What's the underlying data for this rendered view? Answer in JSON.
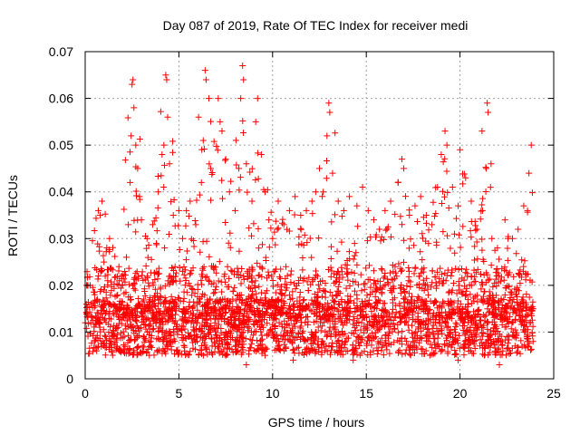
{
  "chart_data": {
    "type": "scatter",
    "title": "Day 087 of 2019, Rate Of TEC Index for receiver medi",
    "xlabel": "GPS time / hours",
    "ylabel": "ROTI / TECUs",
    "xlim": [
      0,
      25
    ],
    "ylim": [
      0,
      0.07
    ],
    "xticks": [
      0,
      5,
      10,
      15,
      20,
      25
    ],
    "xtick_labels": [
      "0",
      "5",
      "10",
      "15",
      "20",
      "25"
    ],
    "yticks": [
      0,
      0.01,
      0.02,
      0.03,
      0.04,
      0.05,
      0.06,
      0.07
    ],
    "ytick_labels": [
      "0",
      "0.01",
      "0.02",
      "0.03",
      "0.04",
      "0.05",
      "0.06",
      "0.07"
    ],
    "grid": true,
    "marker": "+",
    "marker_color": "#ff0000",
    "series": [
      {
        "name": "ROTI",
        "points": [
          [
            0.1,
            0.014
          ],
          [
            0.3,
            0.012
          ],
          [
            0.5,
            0.018
          ],
          [
            0.7,
            0.022
          ],
          [
            0.7,
            0.036
          ],
          [
            0.8,
            0.035
          ],
          [
            0.9,
            0.038
          ],
          [
            1.0,
            0.025
          ],
          [
            1.2,
            0.021
          ],
          [
            1.3,
            0.03
          ],
          [
            1.5,
            0.016
          ],
          [
            1.8,
            0.024
          ],
          [
            2.0,
            0.02
          ],
          [
            2.2,
            0.026
          ],
          [
            2.3,
            0.033
          ],
          [
            2.4,
            0.042
          ],
          [
            2.45,
            0.052
          ],
          [
            2.5,
            0.063
          ],
          [
            2.55,
            0.064
          ],
          [
            2.6,
            0.058
          ],
          [
            2.7,
            0.05
          ],
          [
            2.8,
            0.045
          ],
          [
            2.9,
            0.039
          ],
          [
            3.0,
            0.034
          ],
          [
            3.3,
            0.03
          ],
          [
            3.6,
            0.033
          ],
          [
            3.9,
            0.04
          ],
          [
            4.1,
            0.048
          ],
          [
            4.2,
            0.05
          ],
          [
            4.3,
            0.065
          ],
          [
            4.35,
            0.064
          ],
          [
            4.4,
            0.056
          ],
          [
            4.5,
            0.046
          ],
          [
            4.7,
            0.035
          ],
          [
            5.0,
            0.036
          ],
          [
            5.2,
            0.03
          ],
          [
            5.4,
            0.036
          ],
          [
            5.6,
            0.038
          ],
          [
            5.9,
            0.033
          ],
          [
            6.2,
            0.042
          ],
          [
            6.3,
            0.051
          ],
          [
            6.4,
            0.066
          ],
          [
            6.45,
            0.064
          ],
          [
            6.6,
            0.06
          ],
          [
            6.7,
            0.045
          ],
          [
            7.1,
            0.06
          ],
          [
            7.2,
            0.055
          ],
          [
            7.3,
            0.053
          ],
          [
            7.5,
            0.047
          ],
          [
            7.7,
            0.04
          ],
          [
            8.0,
            0.036
          ],
          [
            8.2,
            0.045
          ],
          [
            8.3,
            0.06
          ],
          [
            8.4,
            0.067
          ],
          [
            8.45,
            0.064
          ],
          [
            8.6,
            0.046
          ],
          [
            8.9,
            0.038
          ],
          [
            9.1,
            0.055
          ],
          [
            9.2,
            0.06
          ],
          [
            9.4,
            0.048
          ],
          [
            9.6,
            0.04
          ],
          [
            9.8,
            0.034
          ],
          [
            10.0,
            0.03
          ],
          [
            10.3,
            0.038
          ],
          [
            10.6,
            0.033
          ],
          [
            10.9,
            0.036
          ],
          [
            11.2,
            0.039
          ],
          [
            11.5,
            0.035
          ],
          [
            11.8,
            0.036
          ],
          [
            12.1,
            0.038
          ],
          [
            12.3,
            0.04
          ],
          [
            12.5,
            0.045
          ],
          [
            12.7,
            0.04
          ],
          [
            12.9,
            0.052
          ],
          [
            13.0,
            0.059
          ],
          [
            13.05,
            0.057
          ],
          [
            13.2,
            0.044
          ],
          [
            13.5,
            0.038
          ],
          [
            13.8,
            0.036
          ],
          [
            14.1,
            0.039
          ],
          [
            14.5,
            0.037
          ],
          [
            14.8,
            0.041
          ],
          [
            15.1,
            0.036
          ],
          [
            15.4,
            0.034
          ],
          [
            15.7,
            0.032
          ],
          [
            16.0,
            0.036
          ],
          [
            16.3,
            0.038
          ],
          [
            16.7,
            0.042
          ],
          [
            16.9,
            0.047
          ],
          [
            17.0,
            0.045
          ],
          [
            17.3,
            0.035
          ],
          [
            17.6,
            0.037
          ],
          [
            17.9,
            0.039
          ],
          [
            18.2,
            0.035
          ],
          [
            18.5,
            0.033
          ],
          [
            18.8,
            0.041
          ],
          [
            19.0,
            0.048
          ],
          [
            19.2,
            0.053
          ],
          [
            19.3,
            0.05
          ],
          [
            19.6,
            0.041
          ],
          [
            19.9,
            0.037
          ],
          [
            20.0,
            0.049
          ],
          [
            20.3,
            0.043
          ],
          [
            20.6,
            0.038
          ],
          [
            20.9,
            0.032
          ],
          [
            21.2,
            0.036
          ],
          [
            21.4,
            0.045
          ],
          [
            21.45,
            0.059
          ],
          [
            21.5,
            0.057
          ],
          [
            21.7,
            0.03
          ],
          [
            22.0,
            0.028
          ],
          [
            22.4,
            0.034
          ],
          [
            22.8,
            0.03
          ],
          [
            23.1,
            0.032
          ],
          [
            23.4,
            0.037
          ],
          [
            23.6,
            0.036
          ],
          [
            23.8,
            0.05
          ],
          [
            23.9,
            0.015
          ],
          [
            23.9,
            0.008
          ],
          [
            23.7,
            0.012
          ],
          [
            0.5,
            0.008
          ],
          [
            1.5,
            0.009
          ],
          [
            3.5,
            0.008
          ],
          [
            5.5,
            0.009
          ],
          [
            7.5,
            0.01
          ],
          [
            9.5,
            0.011
          ],
          [
            11.5,
            0.009
          ],
          [
            13.5,
            0.01
          ],
          [
            15.5,
            0.009
          ],
          [
            17.5,
            0.008
          ],
          [
            19.5,
            0.009
          ],
          [
            21.5,
            0.007
          ],
          [
            22.5,
            0.009
          ],
          [
            8.6,
            0.003
          ],
          [
            11.1,
            0.004
          ],
          [
            14.3,
            0.004
          ],
          [
            19.9,
            0.004
          ],
          [
            22.1,
            0.003
          ],
          [
            0.0,
            0.012
          ],
          [
            10.5,
            0.018
          ]
        ]
      }
    ]
  }
}
